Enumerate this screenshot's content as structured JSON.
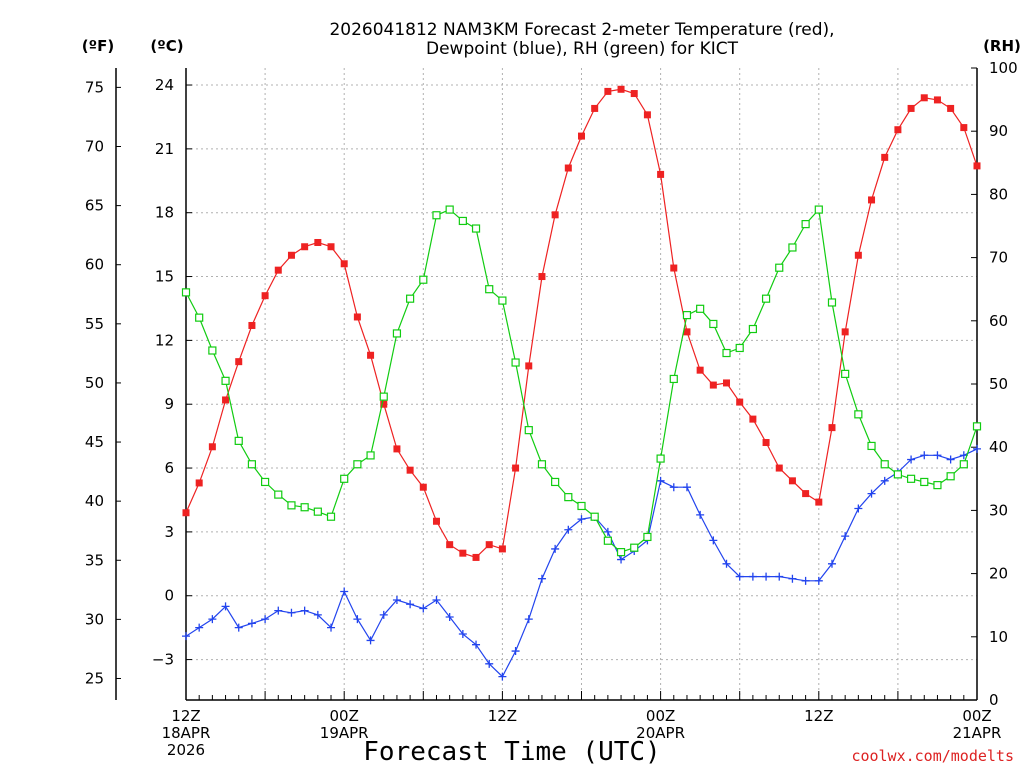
{
  "chart_data": {
    "type": "line",
    "title_line1": "2026041812 NAM3KM Forecast 2-meter Temperature (red),",
    "title_line2": "Dewpoint (blue), RH (green) for KICT",
    "xlabel": "Forecast Time (UTC)",
    "credit": "coolwx.com/modelts",
    "colors": {
      "temperature": "#ee2222",
      "dewpoint": "#2244ee",
      "rh": "#11cc11",
      "grid": "#b0b0b0"
    },
    "axes": {
      "celsius": {
        "unit_label": "(ºC)",
        "ylim": [
          -4.9,
          24.8
        ],
        "ticks": [
          -3,
          0,
          3,
          6,
          9,
          12,
          15,
          18,
          21,
          24
        ]
      },
      "fahrenheit": {
        "unit_label": "(ºF)",
        "ylim": [
          23.18,
          76.64
        ],
        "ticks": [
          25,
          30,
          35,
          40,
          45,
          50,
          55,
          60,
          65,
          70,
          75
        ]
      },
      "rh": {
        "unit_label": "(RH)",
        "ylim": [
          0,
          100
        ],
        "ticks": [
          0,
          10,
          20,
          30,
          40,
          50,
          60,
          70,
          80,
          90,
          100
        ]
      },
      "x": {
        "range_hours": [
          0,
          60
        ],
        "minor_every_hours": 1,
        "grid_every_hours": 6
      }
    },
    "x_ticks": [
      {
        "hour": 0,
        "lines": [
          "12Z",
          "18APR",
          "2026"
        ]
      },
      {
        "hour": 12,
        "lines": [
          "00Z",
          "19APR"
        ]
      },
      {
        "hour": 24,
        "lines": [
          "12Z"
        ]
      },
      {
        "hour": 36,
        "lines": [
          "00Z",
          "20APR"
        ]
      },
      {
        "hour": 48,
        "lines": [
          "12Z"
        ]
      },
      {
        "hour": 60,
        "lines": [
          "00Z",
          "21APR"
        ]
      }
    ],
    "hours": [
      0,
      1,
      2,
      3,
      4,
      5,
      6,
      7,
      8,
      9,
      10,
      11,
      12,
      13,
      14,
      15,
      16,
      17,
      18,
      19,
      20,
      21,
      22,
      23,
      24,
      25,
      26,
      27,
      28,
      29,
      30,
      31,
      32,
      33,
      34,
      35,
      36,
      37,
      38,
      39,
      40,
      41,
      42,
      43,
      44,
      45,
      46,
      47,
      48,
      49,
      50,
      51,
      52,
      53,
      54,
      55,
      56,
      57,
      58,
      59,
      60
    ],
    "series": [
      {
        "name": "Temperature (°C)",
        "key": "temperature",
        "marker": "filled-square",
        "values": [
          3.9,
          5.3,
          7.0,
          9.2,
          11.0,
          12.7,
          14.1,
          15.3,
          16.0,
          16.4,
          16.6,
          16.4,
          15.6,
          13.1,
          11.3,
          9.0,
          6.9,
          5.9,
          5.1,
          3.5,
          2.4,
          2.0,
          1.8,
          2.4,
          2.2,
          6.0,
          10.8,
          15.0,
          17.9,
          20.1,
          21.6,
          22.9,
          23.7,
          23.8,
          23.6,
          22.6,
          19.8,
          15.4,
          12.4,
          10.6,
          9.9,
          10.0,
          9.1,
          8.3,
          7.2,
          6.0,
          5.4,
          4.8,
          4.4,
          7.9,
          12.4,
          16.0,
          18.6,
          20.6,
          21.9,
          22.9,
          23.4,
          23.3,
          22.9,
          22.0,
          20.2
        ]
      },
      {
        "name": "Dewpoint (°C)",
        "key": "dewpoint",
        "marker": "plus",
        "values": [
          -1.9,
          -1.5,
          -1.1,
          -0.5,
          -1.5,
          -1.3,
          -1.1,
          -0.7,
          -0.8,
          -0.7,
          -0.9,
          -1.5,
          0.2,
          -1.1,
          -2.1,
          -0.9,
          -0.2,
          -0.4,
          -0.6,
          -0.2,
          -1.0,
          -1.8,
          -2.3,
          -3.2,
          -3.8,
          -2.6,
          -1.1,
          0.8,
          2.2,
          3.1,
          3.6,
          3.7,
          3.0,
          1.7,
          2.1,
          2.6,
          5.4,
          5.1,
          5.1,
          3.8,
          2.6,
          1.5,
          0.9,
          0.9,
          0.9,
          0.9,
          0.8,
          0.7,
          0.7,
          1.5,
          2.8,
          4.1,
          4.8,
          5.4,
          5.8,
          6.4,
          6.6,
          6.6,
          6.4,
          6.6,
          6.9
        ]
      },
      {
        "name": "RH (%)",
        "key": "rh",
        "marker": "open-square",
        "values": [
          64.5,
          60.5,
          55.3,
          50.5,
          41.0,
          37.3,
          34.5,
          32.5,
          30.8,
          30.5,
          29.8,
          29.0,
          35.0,
          37.3,
          38.7,
          48.0,
          58.0,
          63.5,
          66.5,
          76.7,
          77.6,
          75.8,
          74.6,
          65.0,
          63.2,
          53.4,
          42.7,
          37.3,
          34.5,
          32.1,
          30.7,
          29.0,
          25.2,
          23.4,
          24.1,
          25.8,
          38.2,
          50.8,
          60.9,
          61.9,
          59.5,
          54.9,
          55.7,
          58.7,
          63.5,
          68.4,
          71.6,
          75.3,
          77.6,
          62.9,
          51.6,
          45.2,
          40.2,
          37.3,
          35.7,
          35.0,
          34.5,
          34.0,
          35.4,
          37.3,
          43.3
        ]
      }
    ]
  }
}
